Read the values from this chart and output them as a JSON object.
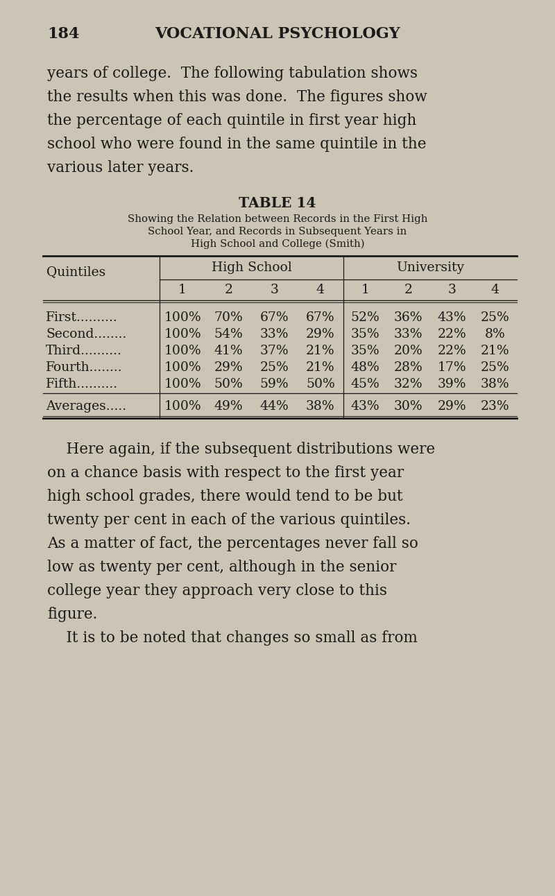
{
  "bg_color": "#ccc4b4",
  "text_color": "#1a1a1a",
  "page_number": "184",
  "header_title": "VOCATIONAL PSYCHOLOGY",
  "intro_lines": [
    "years of college.  The following tabulation shows",
    "the results when this was done.  The figures show",
    "the percentage of each quintile in first year high",
    "school who were found in the same quintile in the",
    "various later years."
  ],
  "table_title": "TABLE 14",
  "table_subtitle_lines": [
    "Showing the Relation between Records in the First High",
    "School Year, and Records in Subsequent Years in",
    "High School and College (Smith)"
  ],
  "col_group1": "High School",
  "col_group2": "University",
  "row_label": "Quintiles",
  "col_headers": [
    "1",
    "2",
    "3",
    "4",
    "1",
    "2",
    "3",
    "4"
  ],
  "rows": [
    {
      "name": "First..........",
      "vals": [
        "100%",
        "70%",
        "67%",
        "67%",
        "52%",
        "36%",
        "43%",
        "25%"
      ]
    },
    {
      "name": "Second........",
      "vals": [
        "100%",
        "54%",
        "33%",
        "29%",
        "35%",
        "33%",
        "22%",
        "8%"
      ]
    },
    {
      "name": "Third..........",
      "vals": [
        "100%",
        "41%",
        "37%",
        "21%",
        "35%",
        "20%",
        "22%",
        "21%"
      ]
    },
    {
      "name": "Fourth........",
      "vals": [
        "100%",
        "29%",
        "25%",
        "21%",
        "48%",
        "28%",
        "17%",
        "25%"
      ]
    },
    {
      "name": "Fifth..........",
      "vals": [
        "100%",
        "50%",
        "59%",
        "50%",
        "45%",
        "32%",
        "39%",
        "38%"
      ]
    }
  ],
  "avg_row": {
    "name": "Averages.....",
    "vals": [
      "100%",
      "49%",
      "44%",
      "38%",
      "43%",
      "30%",
      "29%",
      "23%"
    ]
  },
  "body_lines": [
    "    Here again, if the subsequent distributions were",
    "on a chance basis with respect to the first year",
    "high school grades, there would tend to be but",
    "twenty per cent in each of the various quintiles.",
    "As a matter of fact, the percentages never fall so",
    "low as twenty per cent, although in the senior",
    "college year they approach very close to this",
    "figure.",
    "    It is to be noted that changes so small as from"
  ]
}
